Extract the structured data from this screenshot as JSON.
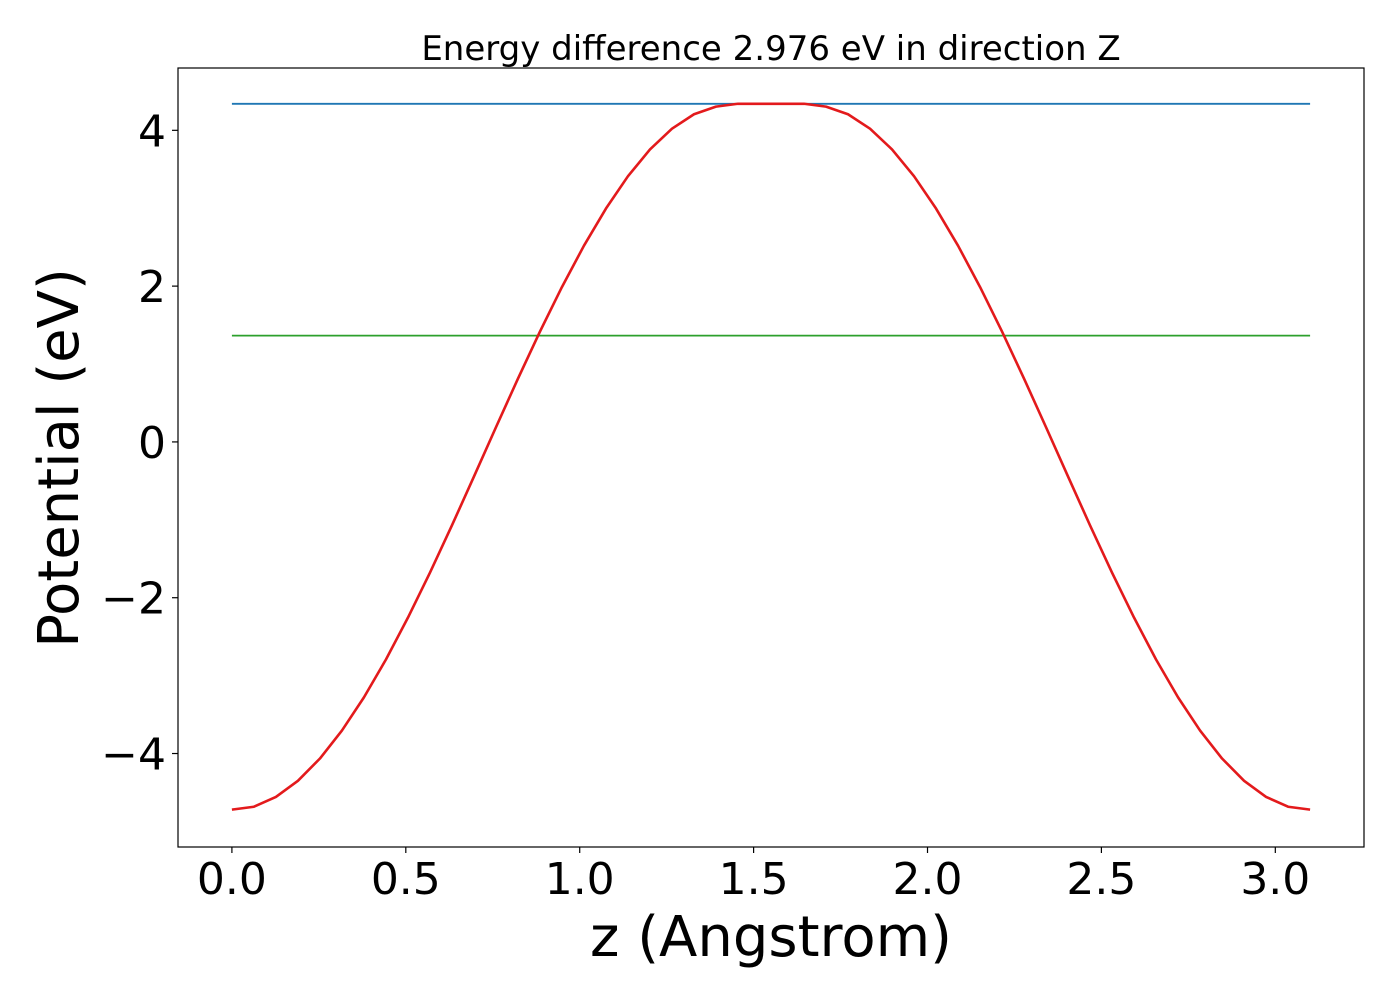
{
  "chart_data": {
    "type": "line",
    "title": "Energy difference 2.976 eV in direction Z",
    "xlabel": "z (Angstrom)",
    "ylabel": "Potential (eV)",
    "xlim": [
      -0.155,
      3.255
    ],
    "ylim": [
      -5.2,
      4.8
    ],
    "xticks": [
      0.0,
      0.5,
      1.0,
      1.5,
      2.0,
      2.5,
      3.0
    ],
    "xtick_labels": [
      "0.0",
      "0.5",
      "1.0",
      "1.5",
      "2.0",
      "2.5",
      "3.0"
    ],
    "yticks": [
      -4,
      -2,
      0,
      2,
      4
    ],
    "ytick_labels": [
      "−4",
      "−2",
      "0",
      "2",
      "4"
    ],
    "grid": false,
    "series": [
      {
        "color": "#1f77b4",
        "x": [
          0.0,
          3.1
        ],
        "y": [
          4.34,
          4.34
        ]
      },
      {
        "color": "#2ca02c",
        "x": [
          0.0,
          3.1
        ],
        "y": [
          1.365,
          1.365
        ]
      },
      {
        "color": "#e31a1c",
        "x": [
          0.0,
          0.0633,
          0.1265,
          0.1898,
          0.2531,
          0.3163,
          0.3796,
          0.4429,
          0.5061,
          0.5694,
          0.6327,
          0.6959,
          0.7592,
          0.8224,
          0.8857,
          0.949,
          1.0122,
          1.0755,
          1.1388,
          1.202,
          1.2653,
          1.3286,
          1.3918,
          1.4551,
          1.5184,
          1.5816,
          1.6449,
          1.7082,
          1.7714,
          1.8347,
          1.898,
          1.9612,
          2.0245,
          2.0878,
          2.151,
          2.2143,
          2.2776,
          2.3408,
          2.4041,
          2.4673,
          2.5306,
          2.5939,
          2.6571,
          2.7204,
          2.7837,
          2.8469,
          2.9102,
          2.9735,
          3.0367,
          3.1
        ],
        "y": [
          -4.72,
          -4.683,
          -4.557,
          -4.35,
          -4.064,
          -3.705,
          -3.279,
          -2.793,
          -2.256,
          -1.678,
          -1.071,
          -0.445,
          0.188,
          0.812,
          1.416,
          1.989,
          2.519,
          2.996,
          3.411,
          3.755,
          4.021,
          4.206,
          4.304,
          4.341,
          4.34,
          4.34,
          4.341,
          4.304,
          4.206,
          4.021,
          3.755,
          3.411,
          2.996,
          2.519,
          1.989,
          1.416,
          0.812,
          0.188,
          -0.445,
          -1.071,
          -1.678,
          -2.256,
          -2.793,
          -3.279,
          -3.705,
          -4.064,
          -4.35,
          -4.557,
          -4.683,
          -4.72
        ]
      }
    ]
  }
}
